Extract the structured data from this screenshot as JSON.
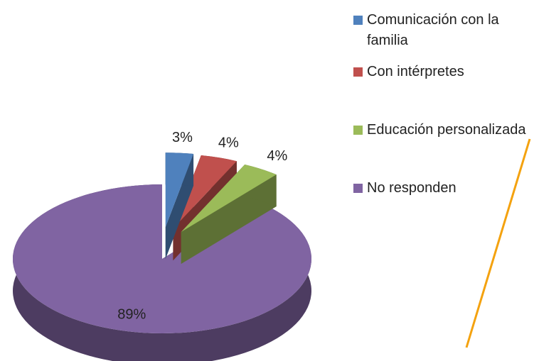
{
  "chart_data": {
    "type": "pie3d",
    "categories": [
      "Comunicación con la familia",
      "Con intérpretes",
      "Educación personalizada",
      "No responden"
    ],
    "values": [
      3,
      4,
      4,
      89
    ],
    "value_labels": [
      "3%",
      "4%",
      "4%",
      "89%"
    ],
    "colors": [
      "#4f81bd",
      "#c0504d",
      "#9bbb59",
      "#8064a2"
    ],
    "legend": "right"
  }
}
